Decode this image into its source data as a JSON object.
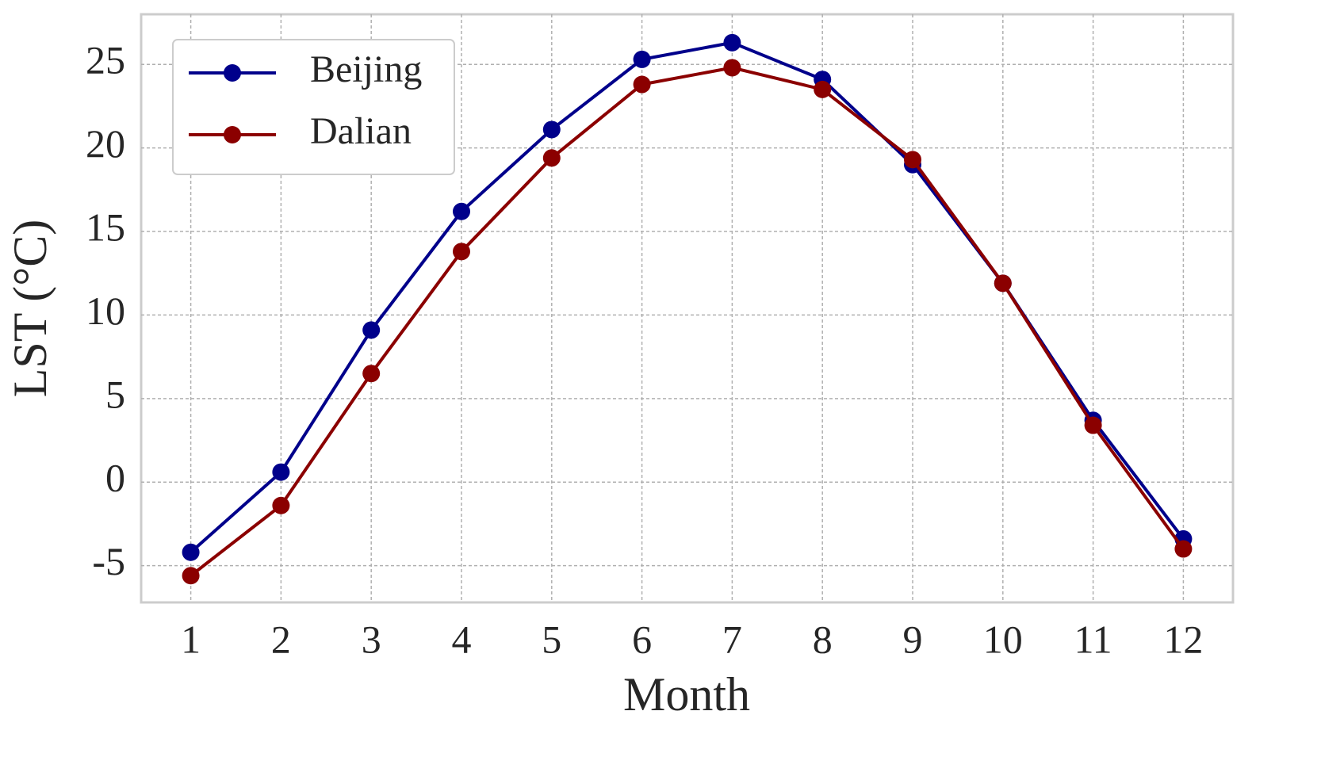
{
  "chart_data": {
    "type": "line",
    "x_label": "Month",
    "y_label": "LST (°C)",
    "x": [
      1,
      2,
      3,
      4,
      5,
      6,
      7,
      8,
      9,
      10,
      11,
      12
    ],
    "series": [
      {
        "name": "Beijing",
        "color": "#00008b",
        "values": [
          -4.2,
          0.6,
          9.1,
          16.2,
          21.1,
          25.3,
          26.3,
          24.1,
          19.0,
          11.9,
          3.7,
          -3.4
        ]
      },
      {
        "name": "Dalian",
        "color": "#8b0000",
        "values": [
          -5.6,
          -1.4,
          6.5,
          13.8,
          19.4,
          23.8,
          24.8,
          23.5,
          19.3,
          11.9,
          3.4,
          -4.0
        ]
      }
    ],
    "xlim": [
      0.45,
      12.55
    ],
    "xticks": [
      1,
      2,
      3,
      4,
      5,
      6,
      7,
      8,
      9,
      10,
      11,
      12
    ],
    "ylim": [
      -7.2,
      28.0
    ],
    "yticks": [
      -5,
      0,
      5,
      10,
      15,
      20,
      25
    ],
    "grid": true,
    "legend": "upper left"
  }
}
